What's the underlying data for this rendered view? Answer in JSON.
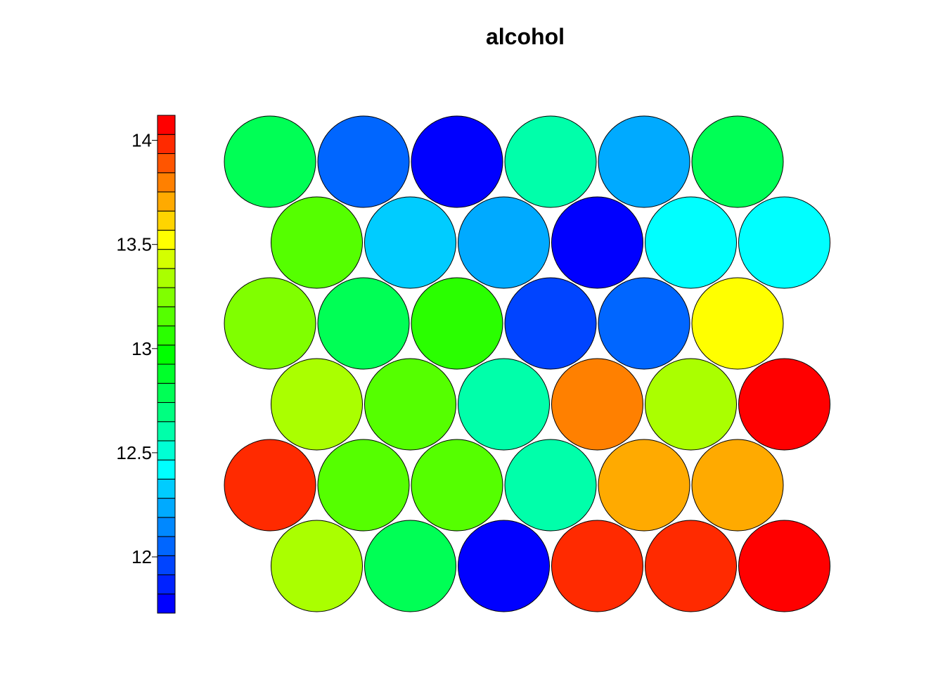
{
  "chart_data": {
    "type": "heatmap",
    "subtype": "som-hexagonal-property-map",
    "title": "alcohol",
    "xlabel": "",
    "ylabel": "",
    "grid": false,
    "legend": "color-bar on the left",
    "colorbar": {
      "ticks": [
        12,
        12.5,
        13,
        13.5,
        14
      ],
      "tick_labels": [
        "12",
        "12.5",
        "13",
        "13.5",
        "14"
      ],
      "range": [
        11.73,
        14.12
      ],
      "colors": [
        "#0000FF",
        "#0022FF",
        "#0044FF",
        "#0066FF",
        "#0088FF",
        "#00AAFF",
        "#00CCFF",
        "#00FFFF",
        "#00FFD4",
        "#00FFAA",
        "#00FF80",
        "#00FF55",
        "#00FF2A",
        "#00FF00",
        "#2AFF00",
        "#55FF00",
        "#80FF00",
        "#AAFF00",
        "#D4FF00",
        "#FFFF00",
        "#FFD400",
        "#FFAA00",
        "#FF8000",
        "#FF5500",
        "#FF2A00",
        "#FF0000"
      ]
    },
    "grid_size": {
      "cols": 6,
      "rows": 6,
      "topology": "hexagonal"
    },
    "rows": [
      {
        "offset": false,
        "values": [
          12.85,
          11.93,
          11.75,
          12.55,
          12.07,
          12.85
        ],
        "colors": [
          "#00FF55",
          "#0066FF",
          "#0000FF",
          "#00FFAA",
          "#00AAFF",
          "#00FF55"
        ]
      },
      {
        "offset": true,
        "values": [
          13.04,
          12.38,
          12.07,
          11.75,
          12.45,
          12.45
        ],
        "colors": [
          "#55FF00",
          "#00CCFF",
          "#00AAFF",
          "#0000FF",
          "#00FFFF",
          "#00FFFF"
        ]
      },
      {
        "offset": false,
        "values": [
          13.13,
          12.85,
          12.96,
          11.84,
          11.93,
          13.5
        ],
        "colors": [
          "#80FF00",
          "#00FF55",
          "#2AFF00",
          "#0044FF",
          "#0066FF",
          "#FFFF00"
        ]
      },
      {
        "offset": true,
        "values": [
          13.32,
          13.04,
          12.55,
          13.86,
          13.32,
          14.05
        ],
        "colors": [
          "#AAFF00",
          "#55FF00",
          "#00FFAA",
          "#FF8000",
          "#AAFF00",
          "#FF0000"
        ]
      },
      {
        "offset": false,
        "values": [
          13.96,
          13.04,
          13.04,
          12.55,
          13.69,
          13.69
        ],
        "colors": [
          "#FF2A00",
          "#55FF00",
          "#55FF00",
          "#00FFAA",
          "#FFAA00",
          "#FFAA00"
        ]
      },
      {
        "offset": true,
        "values": [
          13.32,
          12.85,
          11.75,
          13.96,
          13.96,
          14.05
        ],
        "colors": [
          "#AAFF00",
          "#00FF55",
          "#0000FF",
          "#FF2A00",
          "#FF2A00",
          "#FF0000"
        ]
      }
    ]
  }
}
